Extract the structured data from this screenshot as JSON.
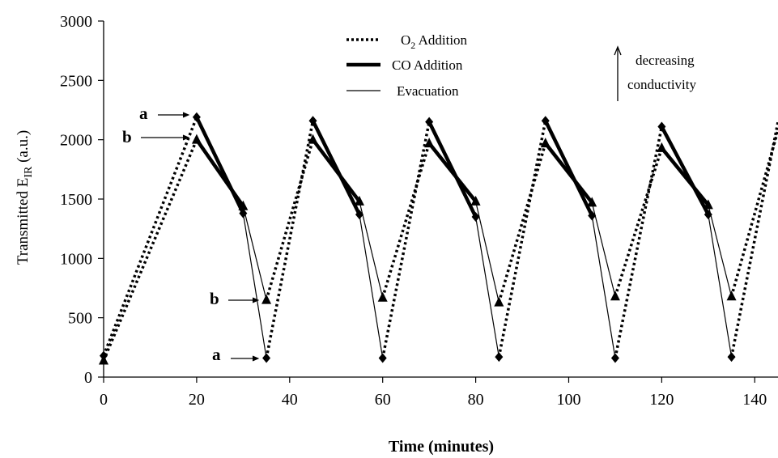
{
  "chart_data": {
    "type": "line",
    "xlabel": "Time (minutes)",
    "ylabel": "Transmitted E",
    "ylabel_sub": "IR",
    "ylabel_suffix": " (a.u.)",
    "xlim": [
      0,
      145
    ],
    "ylim": [
      0,
      3000
    ],
    "xticks": [
      0,
      20,
      40,
      60,
      80,
      100,
      120,
      140
    ],
    "yticks": [
      0,
      500,
      1000,
      1500,
      2000,
      2500,
      3000
    ],
    "grid": false,
    "legend_position": "top-center",
    "legend": [
      {
        "style": "dotted",
        "label_main": "O",
        "label_sub": "2",
        "label_rest": " Addition"
      },
      {
        "style": "thick",
        "label_main": "CO Addition",
        "label_sub": "",
        "label_rest": ""
      },
      {
        "style": "thin",
        "label_main": "Evacuation",
        "label_sub": "",
        "label_rest": ""
      }
    ],
    "note": {
      "line1": "decreasing",
      "line2": "conductivity"
    },
    "annotations": [
      {
        "text": "a",
        "x": 20,
        "y": 2180
      },
      {
        "text": "b",
        "x": 20,
        "y": 2010
      },
      {
        "text": "b",
        "x": 35,
        "y": 650
      },
      {
        "text": "a",
        "x": 35,
        "y": 160
      }
    ],
    "series": [
      {
        "name": "a",
        "marker": "diamond",
        "points": [
          [
            0,
            180
          ],
          [
            20,
            2190
          ],
          [
            30,
            1380
          ],
          [
            35,
            160
          ],
          [
            45,
            2160
          ],
          [
            55,
            1370
          ],
          [
            60,
            160
          ],
          [
            70,
            2150
          ],
          [
            80,
            1350
          ],
          [
            85,
            170
          ],
          [
            95,
            2160
          ],
          [
            105,
            1360
          ],
          [
            110,
            160
          ],
          [
            120,
            2110
          ],
          [
            130,
            1370
          ],
          [
            135,
            170
          ],
          [
            145,
            2150
          ]
        ],
        "segment_styles": [
          "dotted",
          "thick",
          "thin",
          "dotted",
          "thick",
          "thin",
          "dotted",
          "thick",
          "thin",
          "dotted",
          "thick",
          "thin",
          "dotted",
          "thick",
          "thin",
          "dotted"
        ]
      },
      {
        "name": "b",
        "marker": "triangle",
        "points": [
          [
            0,
            140
          ],
          [
            20,
            2000
          ],
          [
            30,
            1440
          ],
          [
            35,
            650
          ],
          [
            45,
            2000
          ],
          [
            55,
            1480
          ],
          [
            60,
            670
          ],
          [
            70,
            1970
          ],
          [
            80,
            1480
          ],
          [
            85,
            630
          ],
          [
            95,
            1970
          ],
          [
            105,
            1470
          ],
          [
            110,
            680
          ],
          [
            120,
            1930
          ],
          [
            130,
            1450
          ],
          [
            135,
            680
          ],
          [
            145,
            2080
          ]
        ],
        "segment_styles": [
          "dotted",
          "thick",
          "thin",
          "dotted",
          "thick",
          "thin",
          "dotted",
          "thick",
          "thin",
          "dotted",
          "thick",
          "thin",
          "dotted",
          "thick",
          "thin",
          "dotted"
        ]
      }
    ]
  }
}
